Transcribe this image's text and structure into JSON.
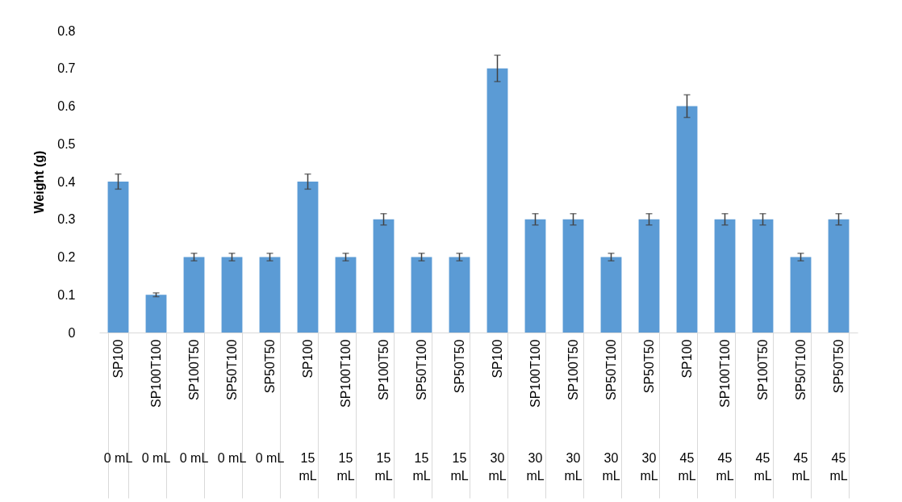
{
  "chart_data": {
    "type": "bar",
    "ylabel": "Weight (g)",
    "categories": [
      "SP100",
      "SP100T100",
      "SP100T50",
      "SP50T100",
      "SP50T50",
      "SP100",
      "SP100T100",
      "SP100T50",
      "SP50T100",
      "SP50T50",
      "SP100",
      "SP100T100",
      "SP100T50",
      "SP50T100",
      "SP50T50",
      "SP100",
      "SP100T100",
      "SP100T50",
      "SP50T100",
      "SP50T50"
    ],
    "annotations": [
      "0 mL",
      "0 mL",
      "0 mL",
      "0 mL",
      "0 mL",
      "15 mL",
      "15 mL",
      "15 mL",
      "15 mL",
      "15 mL",
      "30 mL",
      "30 mL",
      "30 mL",
      "30 mL",
      "30 mL",
      "45 mL",
      "45 mL",
      "45 mL",
      "45 mL",
      "45 mL"
    ],
    "values": [
      0.4,
      0.1,
      0.2,
      0.2,
      0.2,
      0.4,
      0.2,
      0.3,
      0.2,
      0.2,
      0.7,
      0.3,
      0.3,
      0.2,
      0.3,
      0.6,
      0.3,
      0.3,
      0.2,
      0.3
    ],
    "errors": [
      0.02,
      0.005,
      0.01,
      0.01,
      0.01,
      0.02,
      0.01,
      0.015,
      0.01,
      0.01,
      0.035,
      0.015,
      0.015,
      0.01,
      0.015,
      0.03,
      0.015,
      0.015,
      0.01,
      0.015
    ],
    "color": "#5b9bd5",
    "ylim": [
      0,
      0.8
    ],
    "yticks": [
      {
        "value": 0,
        "label": "0"
      },
      0.1,
      0.2,
      0.3,
      0.4,
      0.5,
      0.6,
      0.7,
      0.8
    ],
    "grid": false
  }
}
